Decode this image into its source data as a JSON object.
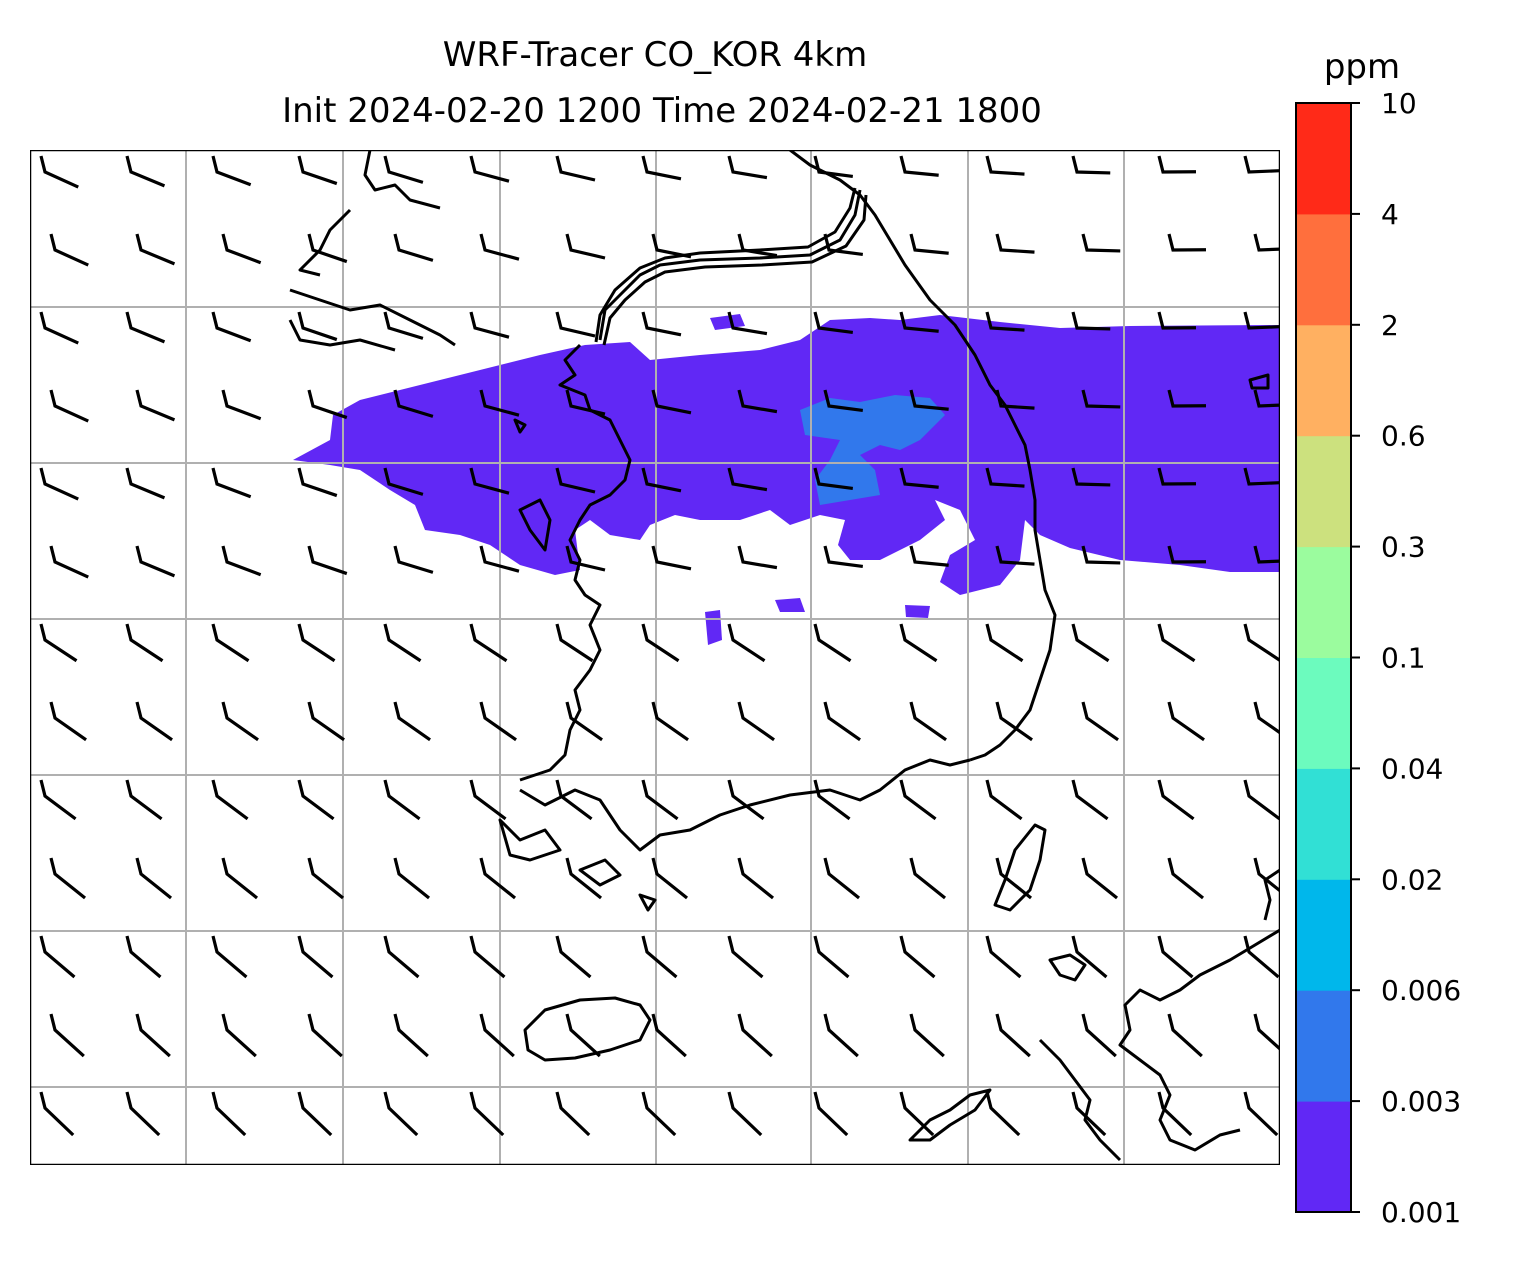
{
  "title": {
    "line1": "WRF-Tracer CO_KOR 4km",
    "line2": "Init 2024-02-20 1200 Time 2024-02-21 1800"
  },
  "colorbar": {
    "unit": "ppm",
    "levels": [
      "0.001",
      "0.003",
      "0.006",
      "0.02",
      "0.04",
      "0.1",
      "0.3",
      "0.6",
      "2",
      "4",
      "10"
    ],
    "colors": [
      "#6128f5",
      "#3178ec",
      "#00b7eb",
      "#31e0d5",
      "#6cfbbe",
      "#9bfc9e",
      "#cce17e",
      "#ffb061",
      "#ff6f3d",
      "#ff2a18"
    ]
  },
  "map": {
    "gridlines": true,
    "gridline_color": "#b0b0b0",
    "plume_color": "#6128f5",
    "core_color": "#3178ec",
    "wind_barbs": "westerly to north-westerly, 10-15 kt"
  }
}
